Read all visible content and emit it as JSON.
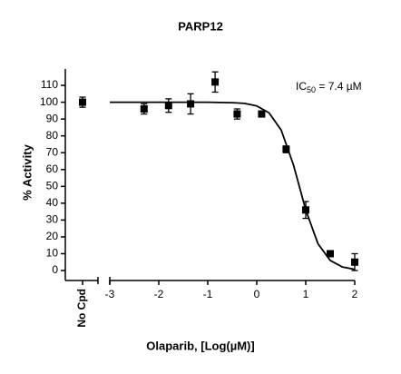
{
  "chart_data": {
    "type": "dose-response",
    "title": "PARP12",
    "x_label": "Olaparib, [Log(µM)]",
    "y_label": "% Activity",
    "annotation": {
      "base": "IC",
      "subscript": "50",
      "text": " = 7.4 µM"
    },
    "control": {
      "label": "No Cpd",
      "value": 100,
      "error": 3
    },
    "x": [
      -2.3,
      -1.8,
      -1.35,
      -0.85,
      -0.4,
      0.1,
      0.6,
      1.0,
      1.5,
      2.0
    ],
    "values": [
      96,
      98,
      99,
      112,
      93,
      93,
      72,
      36,
      10,
      5
    ],
    "errors": [
      3,
      4,
      6,
      6,
      3,
      1,
      2,
      5,
      1,
      5
    ],
    "fit": {
      "x": [
        -3,
        -2.5,
        -2,
        -1.5,
        -1,
        -0.5,
        -0.25,
        0,
        0.25,
        0.5,
        0.75,
        1,
        1.25,
        1.5,
        1.75,
        2
      ],
      "values": [
        100,
        100,
        100,
        100,
        100,
        99.7,
        99.3,
        97.8,
        93.7,
        83.4,
        62.7,
        36.0,
        15.9,
        6.0,
        2.1,
        0.7
      ]
    },
    "color": "#000000",
    "xlim": [
      -3,
      2
    ],
    "xticks": [
      -3,
      -2,
      -1,
      0,
      1,
      2
    ],
    "ylim": [
      -5,
      120
    ],
    "yticks": [
      0,
      10,
      20,
      30,
      40,
      50,
      60,
      70,
      80,
      90,
      100,
      110
    ]
  }
}
